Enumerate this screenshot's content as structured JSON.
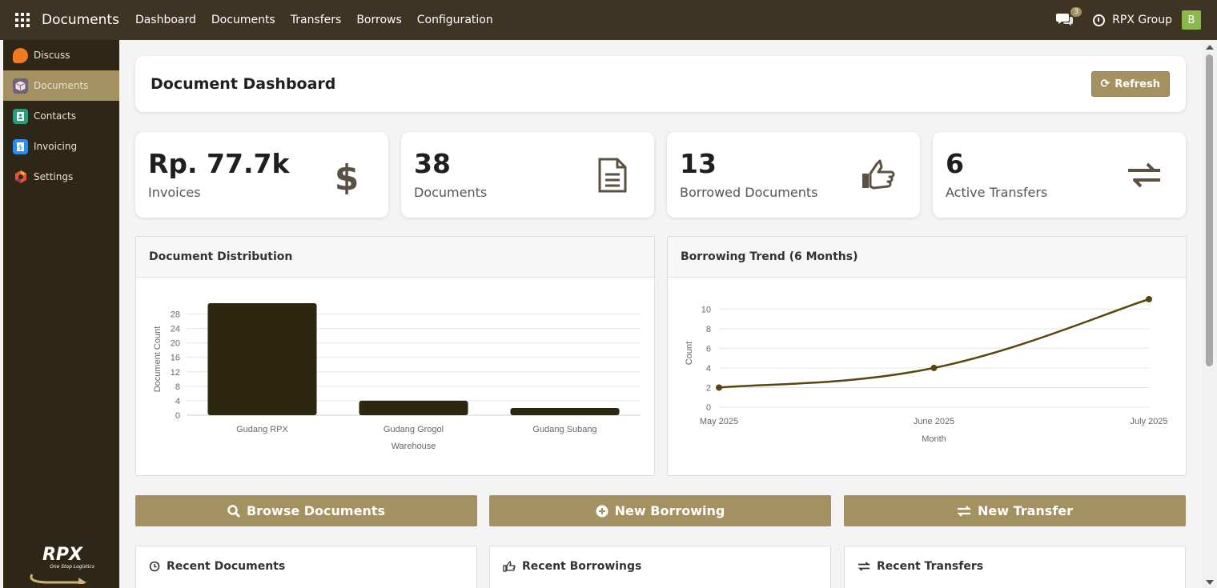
{
  "topbar": {
    "app_title": "Documents",
    "nav": [
      "Dashboard",
      "Documents",
      "Transfers",
      "Borrows",
      "Configuration"
    ],
    "chat_count": "3",
    "company": "RPX Group",
    "avatar_letter": "B"
  },
  "sidebar": {
    "items": [
      {
        "label": "Discuss",
        "icon": "discuss-icon",
        "color": "#f07c1f"
      },
      {
        "label": "Documents",
        "icon": "documents-icon",
        "color": "#6e6470"
      },
      {
        "label": "Contacts",
        "icon": "contacts-icon",
        "color": "#2a9d78"
      },
      {
        "label": "Invoicing",
        "icon": "invoicing-icon",
        "color": "#2d8ce8"
      },
      {
        "label": "Settings",
        "icon": "settings-icon",
        "color": "#e4572e"
      }
    ],
    "active_index": 1,
    "logo_text": "RPX",
    "logo_tagline": "One Stop Logistics"
  },
  "header": {
    "title": "Document Dashboard",
    "refresh_label": "Refresh"
  },
  "stats": [
    {
      "value": "Rp. 77.7k",
      "label": "Invoices",
      "icon": "dollar-icon"
    },
    {
      "value": "38",
      "label": "Documents",
      "icon": "file-text-icon"
    },
    {
      "value": "13",
      "label": "Borrowed Documents",
      "icon": "thumbs-up-icon"
    },
    {
      "value": "6",
      "label": "Active Transfers",
      "icon": "exchange-icon"
    }
  ],
  "charts": {
    "distribution_title": "Document Distribution",
    "trend_title": "Borrowing Trend (6 Months)"
  },
  "chart_data": [
    {
      "type": "bar",
      "title": "Document Distribution",
      "categories": [
        "Gudang RPX",
        "Gudang Grogol",
        "Gudang Subang"
      ],
      "values": [
        31,
        4,
        2
      ],
      "xlabel": "Warehouse",
      "ylabel": "Document Count",
      "yticks": [
        0,
        4,
        8,
        12,
        16,
        20,
        24,
        28
      ],
      "ylim": [
        0,
        31
      ],
      "bar_color": "#2e2710",
      "grid": true
    },
    {
      "type": "line",
      "title": "Borrowing Trend (6 Months)",
      "x": [
        "May 2025",
        "June 2025",
        "July 2025"
      ],
      "values": [
        2,
        4,
        11
      ],
      "xlabel": "Month",
      "ylabel": "Count",
      "yticks": [
        0,
        2,
        4,
        6,
        8,
        10
      ],
      "ylim": [
        0,
        11
      ],
      "line_color": "#5a4510",
      "grid": true
    }
  ],
  "actions": {
    "browse": "Browse Documents",
    "new_borrowing": "New Borrowing",
    "new_transfer": "New Transfer"
  },
  "recent": {
    "documents": "Recent Documents",
    "borrowings": "Recent Borrowings",
    "transfers": "Recent Transfers"
  }
}
